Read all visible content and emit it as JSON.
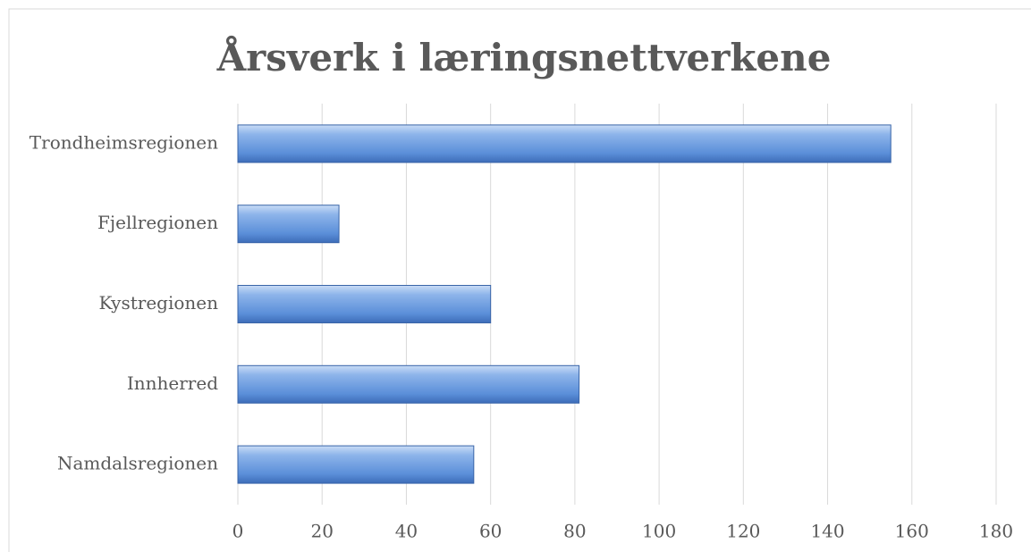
{
  "chart_data": {
    "type": "bar",
    "orientation": "horizontal",
    "title": "Årsverk i læringsnettverkene",
    "categories": [
      "Trondheimsregionen",
      "Fjellregionen",
      "Kystregionen",
      "Innherred",
      "Namdalsregionen"
    ],
    "values": [
      155,
      24,
      60,
      81,
      56
    ],
    "color": "#5b8fd9",
    "xlim": [
      0,
      180
    ],
    "xticks": [
      0,
      20,
      40,
      60,
      80,
      100,
      120,
      140,
      160,
      180
    ],
    "grid": true
  }
}
